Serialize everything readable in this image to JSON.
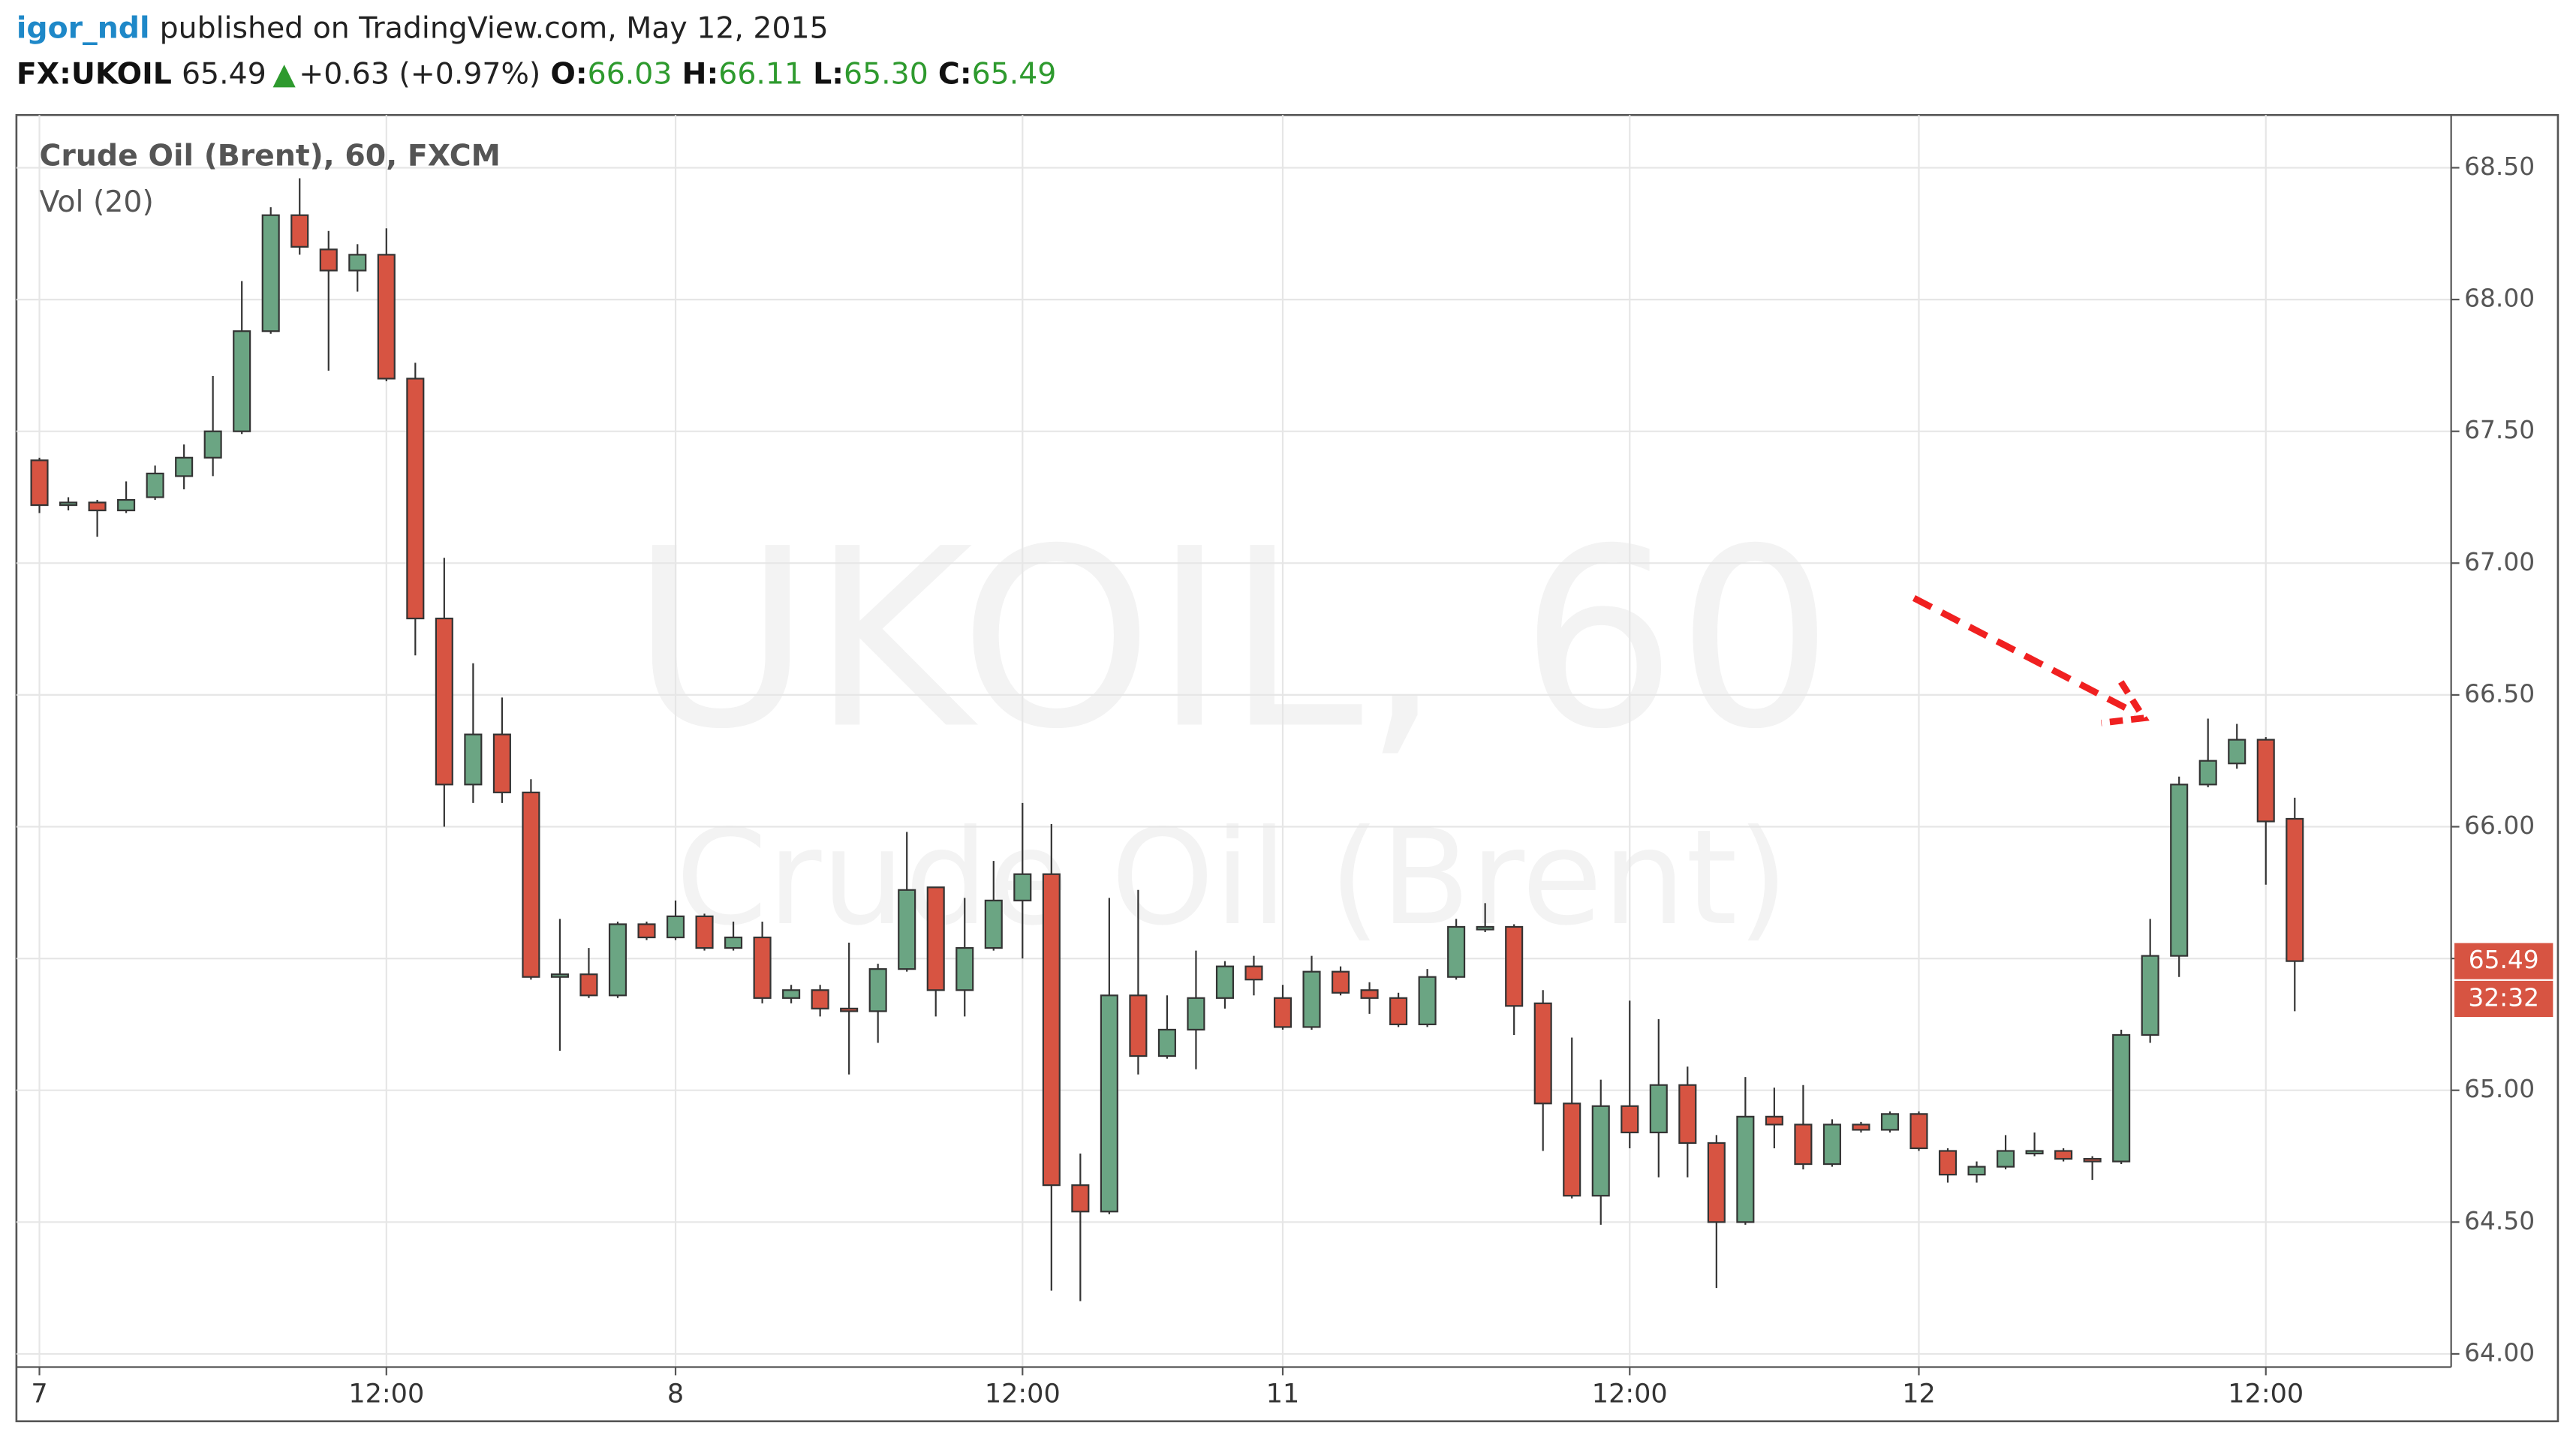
{
  "header": {
    "user": "igor_ndl",
    "published": "published on TradingView.com, May 12, 2015",
    "symbol": "FX:UKOIL",
    "price": "65.49",
    "arrow": "▲",
    "change": "+0.63 (+0.97%)",
    "o_label": "O:",
    "o": "66.03",
    "h_label": "H:",
    "h": "66.11",
    "l_label": "L:",
    "l": "65.30",
    "c_label": "C:",
    "c": "65.49"
  },
  "chart_data": {
    "type": "candlestick",
    "title": "Crude Oil (Brent), 60, FXCM",
    "indicator": "Vol (20)",
    "watermark": [
      "UKOIL, 60",
      "Crude Oil (Brent)"
    ],
    "up_color": "#6ba583",
    "down_color": "#d75442",
    "grid": true,
    "categories": [
      "7",
      null,
      null,
      null,
      null,
      null,
      null,
      null,
      null,
      null,
      null,
      null,
      "12:00",
      null,
      null,
      null,
      null,
      null,
      null,
      null,
      null,
      null,
      "8",
      null,
      null,
      null,
      null,
      null,
      null,
      null,
      null,
      null,
      null,
      null,
      "12:00",
      null,
      null,
      null,
      null,
      null,
      null,
      null,
      null,
      "11",
      null,
      null,
      null,
      null,
      null,
      null,
      null,
      null,
      null,
      null,
      null,
      "12:00",
      null,
      null,
      null,
      null,
      null,
      null,
      null,
      null,
      null,
      "12",
      null,
      null,
      null,
      null,
      null,
      null,
      null,
      null,
      null,
      null,
      null,
      "12:00",
      null
    ],
    "open": [
      67.39,
      67.22,
      67.23,
      67.2,
      67.25,
      67.33,
      67.4,
      67.5,
      67.88,
      68.32,
      68.19,
      68.11,
      68.17,
      67.7,
      66.79,
      66.16,
      66.35,
      66.13,
      65.43,
      65.44,
      65.36,
      65.63,
      65.58,
      65.66,
      65.54,
      65.58,
      65.35,
      65.38,
      65.31,
      65.3,
      65.46,
      65.77,
      65.38,
      65.54,
      65.72,
      65.82,
      64.64,
      64.54,
      65.36,
      65.13,
      65.23,
      65.35,
      65.47,
      65.35,
      65.24,
      65.45,
      65.38,
      65.35,
      65.25,
      65.43,
      65.61,
      65.62,
      65.33,
      64.95,
      64.6,
      64.94,
      64.84,
      65.02,
      64.8,
      64.5,
      64.9,
      64.87,
      64.72,
      64.87,
      64.85,
      64.91,
      64.77,
      64.68,
      64.71,
      64.76,
      64.77,
      64.74,
      64.73,
      65.21,
      65.51,
      66.16,
      66.24,
      66.33,
      66.03
    ],
    "high": [
      67.4,
      67.25,
      67.24,
      67.31,
      67.37,
      67.45,
      67.71,
      68.07,
      68.35,
      68.46,
      68.26,
      68.21,
      68.27,
      67.76,
      67.02,
      66.62,
      66.49,
      66.18,
      65.65,
      65.54,
      65.64,
      65.64,
      65.72,
      65.67,
      65.64,
      65.64,
      65.4,
      65.4,
      65.56,
      65.48,
      65.98,
      65.77,
      65.73,
      65.87,
      66.09,
      66.01,
      64.76,
      65.73,
      65.76,
      65.36,
      65.53,
      65.49,
      65.51,
      65.4,
      65.51,
      65.47,
      65.41,
      65.37,
      65.46,
      65.65,
      65.71,
      65.63,
      65.38,
      65.2,
      65.04,
      65.34,
      65.27,
      65.09,
      64.83,
      65.05,
      65.01,
      65.02,
      64.89,
      64.88,
      64.92,
      64.92,
      64.78,
      64.73,
      64.83,
      64.84,
      64.78,
      64.75,
      65.23,
      65.65,
      66.19,
      66.41,
      66.39,
      66.34,
      66.11
    ],
    "low": [
      67.19,
      67.2,
      67.1,
      67.19,
      67.24,
      67.28,
      67.33,
      67.49,
      67.87,
      68.17,
      67.73,
      68.03,
      67.69,
      66.65,
      66.0,
      66.09,
      66.09,
      65.42,
      65.15,
      65.35,
      65.35,
      65.57,
      65.57,
      65.53,
      65.53,
      65.33,
      65.33,
      65.28,
      65.06,
      65.18,
      65.45,
      65.28,
      65.28,
      65.53,
      65.5,
      64.24,
      64.2,
      64.53,
      65.06,
      65.12,
      65.08,
      65.31,
      65.36,
      65.23,
      65.23,
      65.36,
      65.29,
      65.24,
      65.24,
      65.42,
      65.6,
      65.21,
      64.77,
      64.59,
      64.49,
      64.78,
      64.67,
      64.67,
      64.25,
      64.49,
      64.78,
      64.7,
      64.71,
      64.84,
      64.84,
      64.77,
      64.65,
      64.65,
      64.7,
      64.75,
      64.73,
      64.66,
      64.72,
      65.18,
      65.43,
      66.15,
      66.22,
      65.78,
      65.3
    ],
    "close": [
      67.22,
      67.23,
      67.2,
      67.24,
      67.34,
      67.4,
      67.5,
      67.88,
      68.32,
      68.2,
      68.11,
      68.17,
      67.7,
      66.79,
      66.16,
      66.35,
      66.13,
      65.43,
      65.44,
      65.36,
      65.63,
      65.58,
      65.66,
      65.54,
      65.58,
      65.35,
      65.38,
      65.31,
      65.3,
      65.46,
      65.76,
      65.38,
      65.54,
      65.72,
      65.82,
      64.64,
      64.54,
      65.36,
      65.13,
      65.23,
      65.35,
      65.47,
      65.42,
      65.24,
      65.45,
      65.37,
      65.35,
      65.25,
      65.43,
      65.62,
      65.62,
      65.32,
      64.95,
      64.6,
      64.94,
      64.84,
      65.02,
      64.8,
      64.5,
      64.9,
      64.87,
      64.72,
      64.87,
      64.85,
      64.91,
      64.78,
      64.68,
      64.71,
      64.77,
      64.77,
      64.74,
      64.73,
      65.21,
      65.51,
      66.16,
      66.25,
      66.33,
      66.02,
      65.49
    ],
    "ylim": [
      63.95,
      68.7
    ],
    "yticks": [
      {
        "value": 64,
        "label": "64.00"
      },
      {
        "value": 64.5,
        "label": "64.50"
      },
      {
        "value": 65,
        "label": "65.00"
      },
      {
        "value": 65.5,
        "label": "65.50"
      },
      {
        "value": 66,
        "label": "66.00"
      },
      {
        "value": 66.5,
        "label": "66.50"
      },
      {
        "value": 67,
        "label": "67.00"
      },
      {
        "value": 67.5,
        "label": "67.50"
      },
      {
        "value": 68,
        "label": "68.00"
      },
      {
        "value": 68.5,
        "label": "68.50"
      }
    ],
    "last_price": {
      "value": 65.49,
      "label": "65.49"
    },
    "countdown": "32:32"
  }
}
